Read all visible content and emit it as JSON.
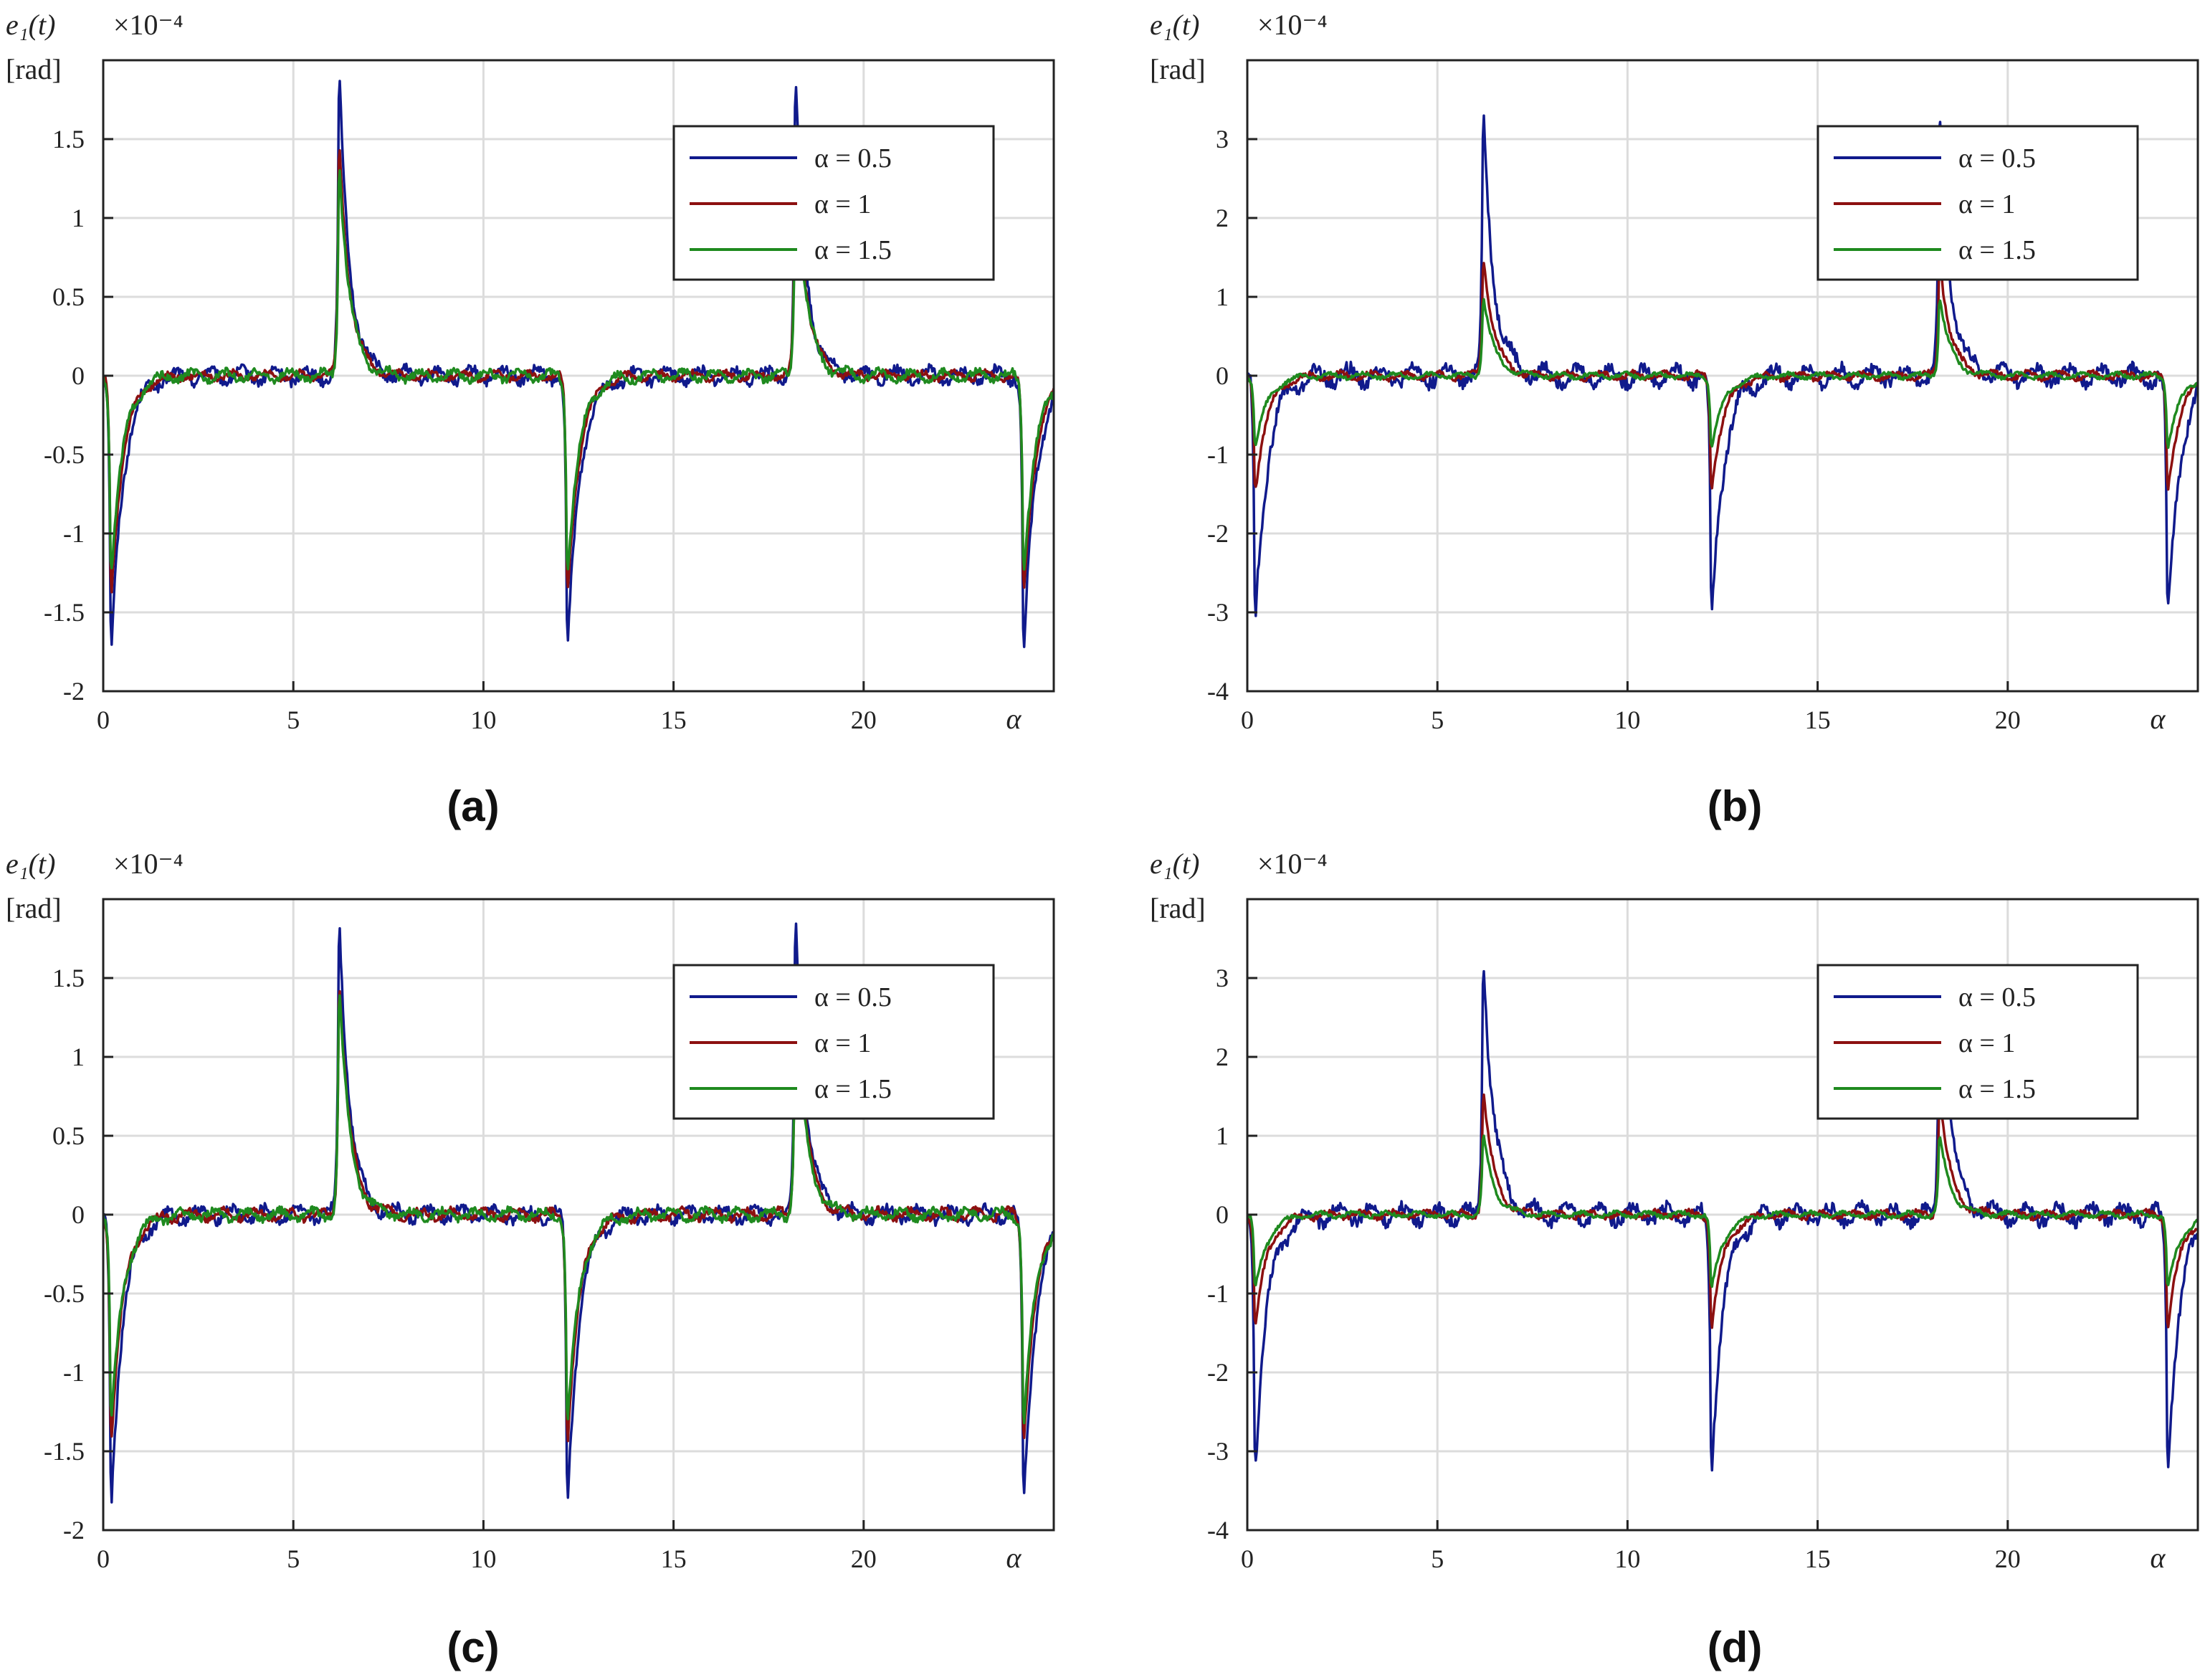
{
  "chart_data": [
    {
      "type": "line",
      "panel_label": "(a)",
      "ylabel": "e₁(t)",
      "yunit": "[rad]",
      "exponent_label": "×10⁻⁴",
      "xlabel": "α",
      "xlim": [
        0,
        25
      ],
      "ylim": [
        -2,
        2
      ],
      "xticks": [
        0,
        5,
        10,
        15,
        20
      ],
      "xtick_labels": [
        "0",
        "5",
        "10",
        "15",
        "20"
      ],
      "yticks": [
        -2,
        -1.5,
        -1,
        -0.5,
        0,
        0.5,
        1,
        1.5
      ],
      "ytick_labels": [
        "-2",
        "-1.5",
        "-1",
        "-0.5",
        "0",
        "0.5",
        "1",
        "1.5"
      ],
      "legend_position": "top-right",
      "peak_times": [
        6.2,
        18.2
      ],
      "dip_times": [
        0.2,
        12.2,
        24.2
      ],
      "series": [
        {
          "name": "α = 0.5",
          "color": "#101a8c",
          "peak": 1.95,
          "dip": -1.85,
          "noise": 0.07
        },
        {
          "name": "α = 1",
          "color": "#8c1010",
          "peak": 1.55,
          "dip": -1.45,
          "noise": 0.04
        },
        {
          "name": "α = 1.5",
          "color": "#1f8a1f",
          "peak": 1.42,
          "dip": -1.3,
          "noise": 0.05
        }
      ]
    },
    {
      "type": "line",
      "panel_label": "(b)",
      "ylabel": "e₁(t)",
      "yunit": "[rad]",
      "exponent_label": "×10⁻⁴",
      "xlabel": "α",
      "xlim": [
        0,
        25
      ],
      "ylim": [
        -4,
        4
      ],
      "xticks": [
        0,
        5,
        10,
        15,
        20
      ],
      "xtick_labels": [
        "0",
        "5",
        "10",
        "15",
        "20"
      ],
      "yticks": [
        -4,
        -3,
        -2,
        -1,
        0,
        1,
        2,
        3
      ],
      "ytick_labels": [
        "-4",
        "-3",
        "-2",
        "-1",
        "0",
        "1",
        "2",
        "3"
      ],
      "legend_position": "top-right",
      "peak_times": [
        6.2,
        18.2
      ],
      "dip_times": [
        0.2,
        12.2,
        24.2
      ],
      "series": [
        {
          "name": "α = 0.5",
          "color": "#101a8c",
          "peak": 3.45,
          "dip": -3.25,
          "noise": 0.18
        },
        {
          "name": "α = 1",
          "color": "#8c1010",
          "peak": 1.6,
          "dip": -1.5,
          "noise": 0.07
        },
        {
          "name": "α = 1.5",
          "color": "#1f8a1f",
          "peak": 1.05,
          "dip": -0.95,
          "noise": 0.05
        }
      ]
    },
    {
      "type": "line",
      "panel_label": "(c)",
      "ylabel": "e₁(t)",
      "yunit": "[rad]",
      "exponent_label": "×10⁻⁴",
      "xlabel": "α",
      "xlim": [
        0,
        25
      ],
      "ylim": [
        -2,
        2
      ],
      "xticks": [
        0,
        5,
        10,
        15,
        20
      ],
      "xtick_labels": [
        "0",
        "5",
        "10",
        "15",
        "20"
      ],
      "yticks": [
        -2,
        -1.5,
        -1,
        -0.5,
        0,
        0.5,
        1,
        1.5
      ],
      "ytick_labels": [
        "-2",
        "-1.5",
        "-1",
        "-0.5",
        "0",
        "0.5",
        "1",
        "1.5"
      ],
      "legend_position": "top-right",
      "peak_times": [
        6.2,
        18.2
      ],
      "dip_times": [
        0.2,
        12.2,
        24.2
      ],
      "series": [
        {
          "name": "α = 0.5",
          "color": "#101a8c",
          "peak": 1.97,
          "dip": -1.9,
          "noise": 0.07
        },
        {
          "name": "α = 1",
          "color": "#8c1010",
          "peak": 1.58,
          "dip": -1.5,
          "noise": 0.05
        },
        {
          "name": "α = 1.5",
          "color": "#1f8a1f",
          "peak": 1.48,
          "dip": -1.4,
          "noise": 0.05
        }
      ]
    },
    {
      "type": "line",
      "panel_label": "(d)",
      "ylabel": "e₁(t)",
      "yunit": "[rad]",
      "exponent_label": "×10⁻⁴",
      "xlabel": "α",
      "xlim": [
        0,
        25
      ],
      "ylim": [
        -4,
        4
      ],
      "xticks": [
        0,
        5,
        10,
        15,
        20
      ],
      "xtick_labels": [
        "0",
        "5",
        "10",
        "15",
        "20"
      ],
      "yticks": [
        -4,
        -3,
        -2,
        -1,
        0,
        1,
        2,
        3
      ],
      "ytick_labels": [
        "-4",
        "-3",
        "-2",
        "-1",
        "0",
        "1",
        "2",
        "3"
      ],
      "legend_position": "top-right",
      "peak_times": [
        6.2,
        18.2
      ],
      "dip_times": [
        0.2,
        12.2,
        24.2
      ],
      "series": [
        {
          "name": "α = 0.5",
          "color": "#101a8c",
          "peak": 3.45,
          "dip": -3.3,
          "noise": 0.17
        },
        {
          "name": "α = 1",
          "color": "#8c1010",
          "peak": 1.62,
          "dip": -1.5,
          "noise": 0.07
        },
        {
          "name": "α = 1.5",
          "color": "#1f8a1f",
          "peak": 1.05,
          "dip": -1.0,
          "noise": 0.05
        }
      ]
    }
  ]
}
